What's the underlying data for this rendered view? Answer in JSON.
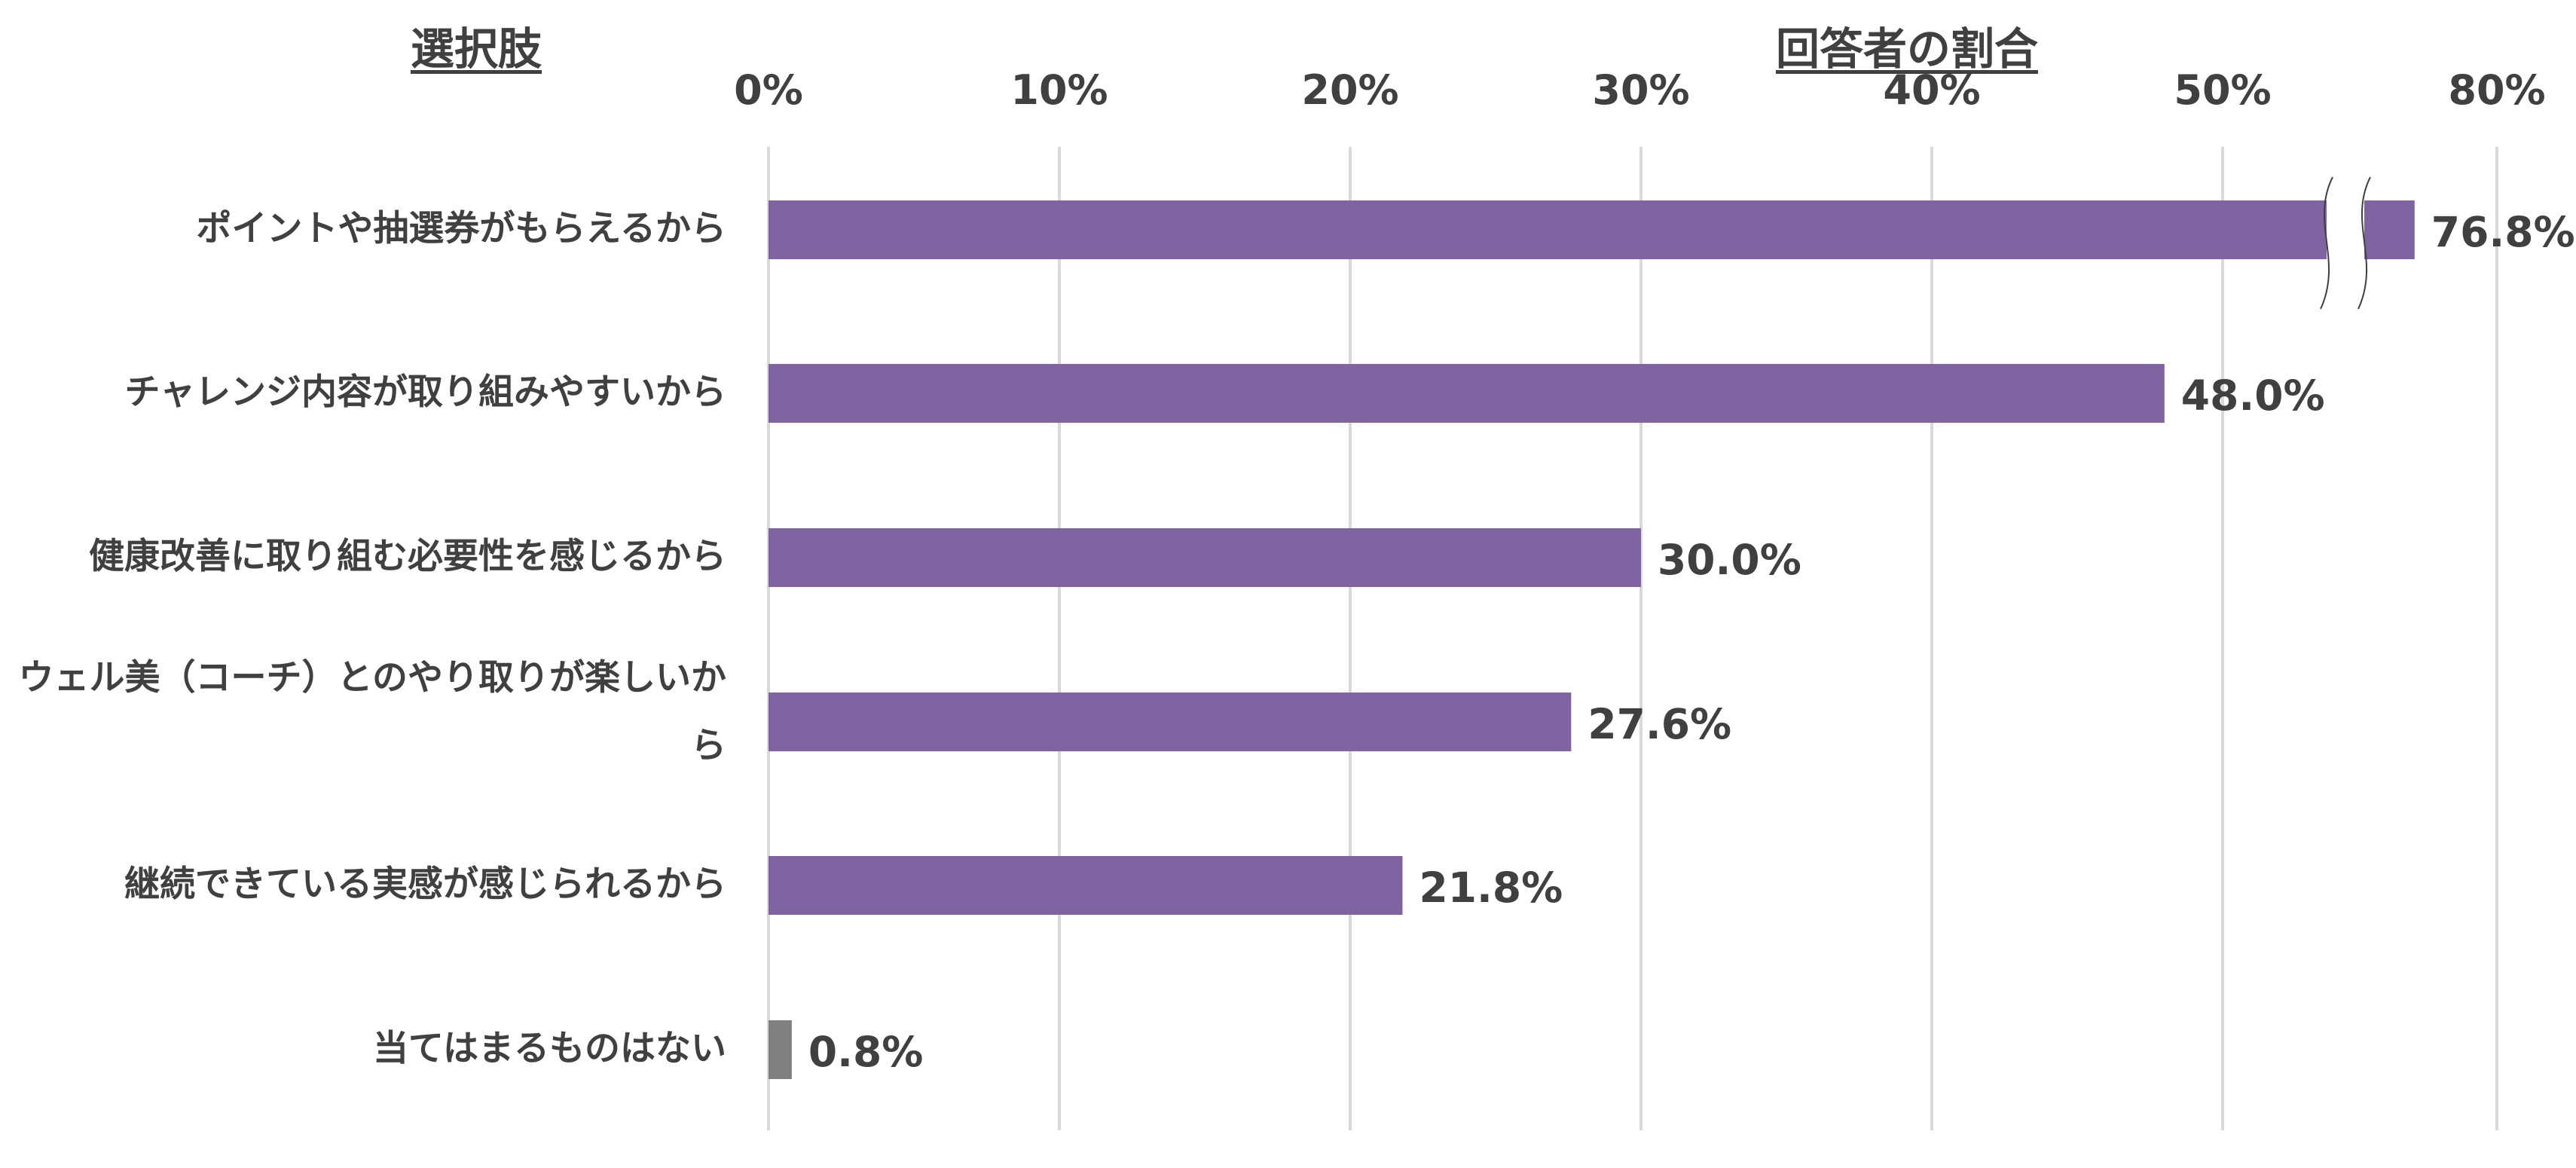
{
  "chart_data": {
    "type": "bar",
    "orientation": "horizontal",
    "category_axis_title": "選択肢",
    "value_axis_title": "回答者の割合",
    "x_ticks": [
      "0%",
      "10%",
      "20%",
      "30%",
      "40%",
      "50%",
      "80%"
    ],
    "axis_break": {
      "from": 55,
      "to": 75
    },
    "categories": [
      "ポイントや抽選券がもらえるから",
      "チャレンジ内容が取り組みやすいから",
      "健康改善に取り組む必要性を感じるから",
      "ウェル美（コーチ）とのやり取りが楽しいから",
      "継続できている実感が感じられるから",
      "当てはまるものはない"
    ],
    "values": [
      76.8,
      48.0,
      30.0,
      27.6,
      21.8,
      0.8
    ],
    "value_labels": [
      "76.8%",
      "48.0%",
      "30.0%",
      "27.6%",
      "21.8%",
      "0.8%"
    ],
    "bar_colors": [
      "#8064a2",
      "#8064a2",
      "#8064a2",
      "#8064a2",
      "#8064a2",
      "#808080"
    ],
    "grid": true
  }
}
